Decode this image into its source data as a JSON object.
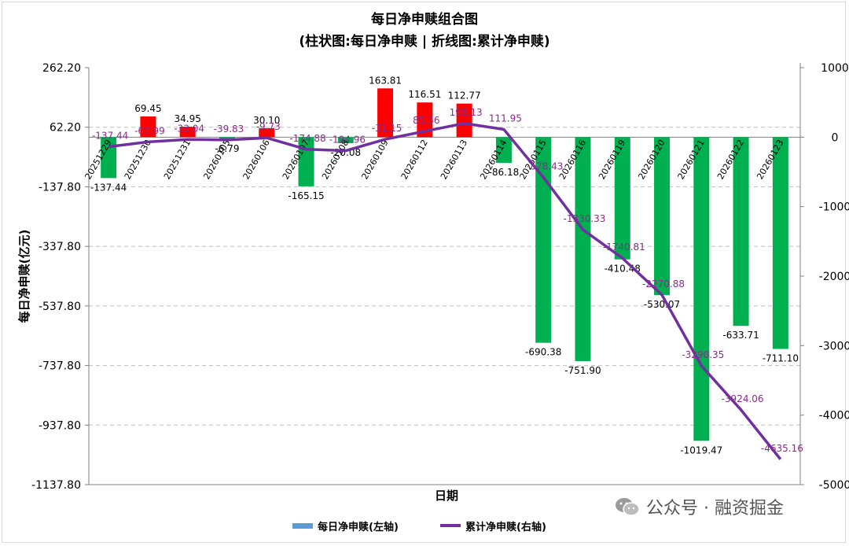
{
  "title": "每日净申赎组合图",
  "subtitle": "(柱状图:每日净申赎 | 折线图:累计净申赎)",
  "watermark": "公众号 · 融资掘金",
  "chart_data": {
    "type": "bar",
    "xlabel": "日期",
    "ylabel": "每日净申赎(亿元)",
    "categories": [
      "20251229",
      "20251230",
      "20251231",
      "20260105",
      "20260106",
      "20260107",
      "20260108",
      "20260109",
      "20260112",
      "20260113",
      "20260114",
      "20260115",
      "20260116",
      "20260119",
      "20260120",
      "20260121",
      "20260122",
      "20260123"
    ],
    "category_labels": [
      "20251229",
      "20251230",
      "20251231",
      "20260105",
      "20260106",
      "20260107",
      "20260108",
      "20260109",
      "20260112",
      "20260113",
      "20260114",
      "20260115",
      "20260116",
      "20260119",
      "20260120",
      "20260121",
      "20260122",
      "20260123"
    ],
    "series": [
      {
        "name": "每日净申赎(左轴)",
        "type": "bar",
        "axis": "left",
        "values": [
          -137.44,
          69.45,
          34.95,
          -6.79,
          30.1,
          -165.15,
          -20.08,
          163.81,
          116.51,
          112.77,
          -86.18,
          -690.38,
          -751.9,
          -410.48,
          -530.07,
          -1019.47,
          -633.71,
          -711.1
        ],
        "value_labels": [
          "-137.44",
          "69.45",
          "34.95",
          "-6.79",
          "30.10",
          "-165.15",
          "-20.08",
          "163.81",
          "116.51",
          "112.77",
          "-86.18",
          "-690.38",
          "-751.90",
          "-410.48",
          "-530.07",
          "-1019.47",
          "-633.71",
          "-711.10"
        ]
      },
      {
        "name": "累计净申赎(右轴)",
        "type": "line",
        "axis": "right",
        "values": [
          -137.44,
          -67.99,
          -33.04,
          -39.83,
          -9.73,
          -174.88,
          -194.96,
          -31.15,
          85.36,
          198.13,
          111.95,
          -578.43,
          -1330.33,
          -1740.81,
          -2270.88,
          -3290.35,
          -3924.06,
          -4635.16
        ],
        "value_labels": [
          "-137.44",
          "-67.99",
          "-33.04",
          "-39.83",
          "-9.73",
          "-174.88",
          "-194.96",
          "-31.15",
          "85.36",
          "198.13",
          "111.95",
          "-578.43",
          "-1330.33",
          "-1740.81",
          "-2270.88",
          "-3290.35",
          "-3924.06",
          "-4635.16"
        ]
      }
    ],
    "left_axis": {
      "min": -1137.8,
      "max": 262.2,
      "ticks": [
        262.2,
        62.2,
        -137.8,
        -337.8,
        -537.8,
        -737.8,
        -937.8,
        -1137.8
      ],
      "tick_labels": [
        "262.20",
        "62.20",
        "-137.80",
        "-337.80",
        "-537.80",
        "-737.80",
        "-937.80",
        "-1137.80"
      ]
    },
    "right_axis": {
      "min": -5000,
      "max": 1000,
      "ticks": [
        1000,
        0,
        -1000,
        -2000,
        -3000,
        -4000,
        -5000
      ],
      "tick_labels": [
        "1000",
        "0",
        "-1000",
        "-2000",
        "-3000",
        "-4000",
        "-5000"
      ]
    },
    "grid": true,
    "legend_position": "bottom",
    "legend": [
      "每日净申赎(左轴)",
      "累计净申赎(右轴)"
    ],
    "colors": {
      "positive_bar": "#ff0000",
      "negative_bar": "#00b050",
      "line": "#7030a0",
      "line_label": "#8b2a8b",
      "legend_bar": "#5b9bd5",
      "grid": "#bfbfbf",
      "axis": "#808080"
    }
  }
}
